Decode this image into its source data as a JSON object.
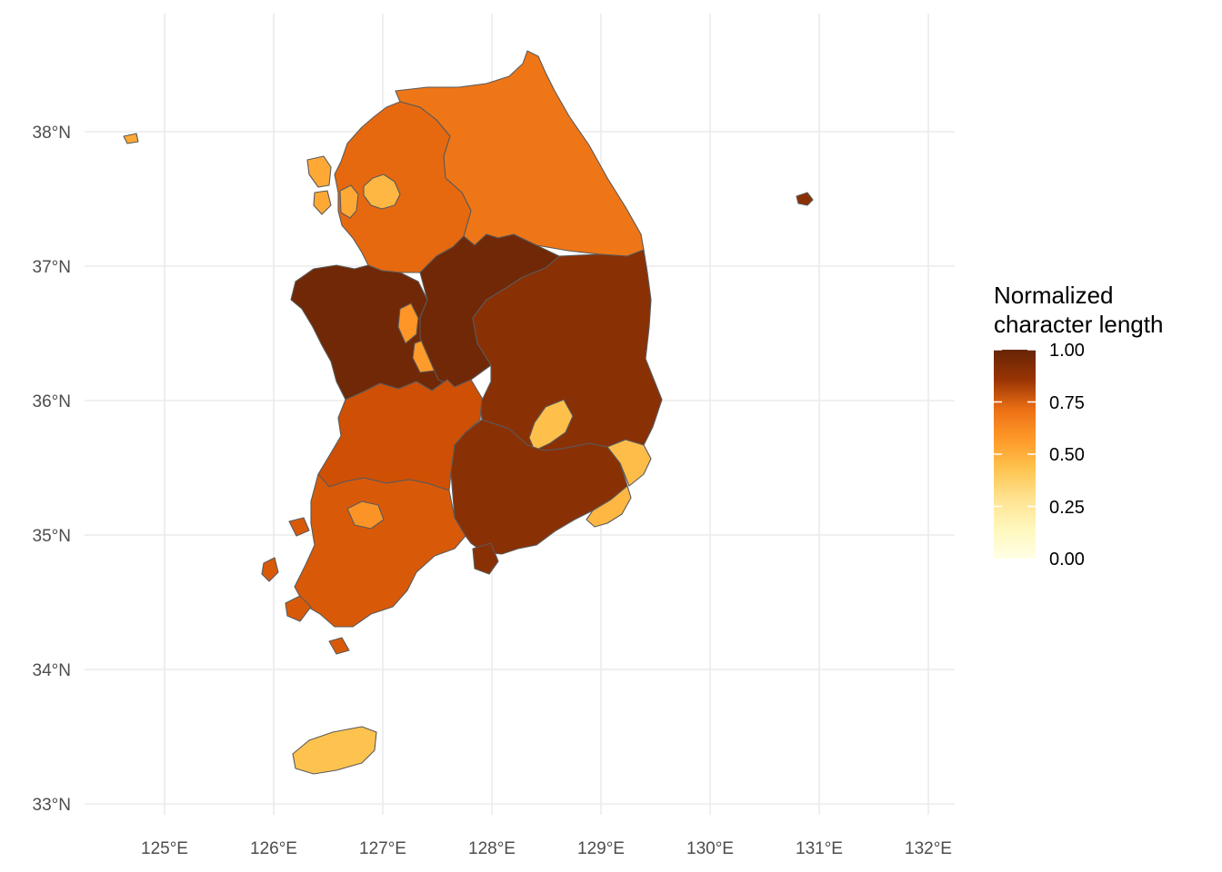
{
  "map": {
    "title": "",
    "x_axis": {
      "ticks": [
        {
          "value": 125,
          "label": "125°E"
        },
        {
          "value": 126,
          "label": "126°E"
        },
        {
          "value": 127,
          "label": "127°E"
        },
        {
          "value": 128,
          "label": "128°E"
        },
        {
          "value": 129,
          "label": "129°E"
        },
        {
          "value": 130,
          "label": "130°E"
        },
        {
          "value": 131,
          "label": "131°E"
        },
        {
          "value": 132,
          "label": "132°E"
        }
      ]
    },
    "y_axis": {
      "ticks": [
        {
          "value": 33,
          "label": "33°N"
        },
        {
          "value": 34,
          "label": "34°N"
        },
        {
          "value": 35,
          "label": "35°N"
        },
        {
          "value": 36,
          "label": "36°N"
        },
        {
          "value": 37,
          "label": "37°N"
        },
        {
          "value": 38,
          "label": "38°N"
        }
      ]
    },
    "legend": {
      "title_line1": "Normalized",
      "title_line2": "character length",
      "placement": "right",
      "range": [
        0,
        1
      ],
      "ticks": [
        "1.00",
        "0.75",
        "0.50",
        "0.25",
        "0.00"
      ],
      "colors": [
        "#ffffe5",
        "#fee391",
        "#fec44f",
        "#fe9929",
        "#ec7014",
        "#cc4c02",
        "#993404",
        "#662506"
      ]
    },
    "regions": [
      {
        "id": "gangwon",
        "value": 0.55
      },
      {
        "id": "gyeonggi",
        "value": 0.6
      },
      {
        "id": "seoul",
        "value": 0.33
      },
      {
        "id": "incheon",
        "value": 0.38
      },
      {
        "id": "chungnam",
        "value": 0.97
      },
      {
        "id": "sejong",
        "value": 0.44
      },
      {
        "id": "daejeon",
        "value": 0.42
      },
      {
        "id": "chungbuk",
        "value": 0.97
      },
      {
        "id": "gyeongbuk",
        "value": 0.9
      },
      {
        "id": "daegu",
        "value": 0.3
      },
      {
        "id": "jeonbuk",
        "value": 0.7
      },
      {
        "id": "jeonnam",
        "value": 0.66
      },
      {
        "id": "gwangju",
        "value": 0.45
      },
      {
        "id": "gyeongnam",
        "value": 0.9
      },
      {
        "id": "ulsan",
        "value": 0.31
      },
      {
        "id": "busan",
        "value": 0.33
      },
      {
        "id": "jeju",
        "value": 0.29
      },
      {
        "id": "ulleung",
        "value": 0.9
      }
    ]
  }
}
